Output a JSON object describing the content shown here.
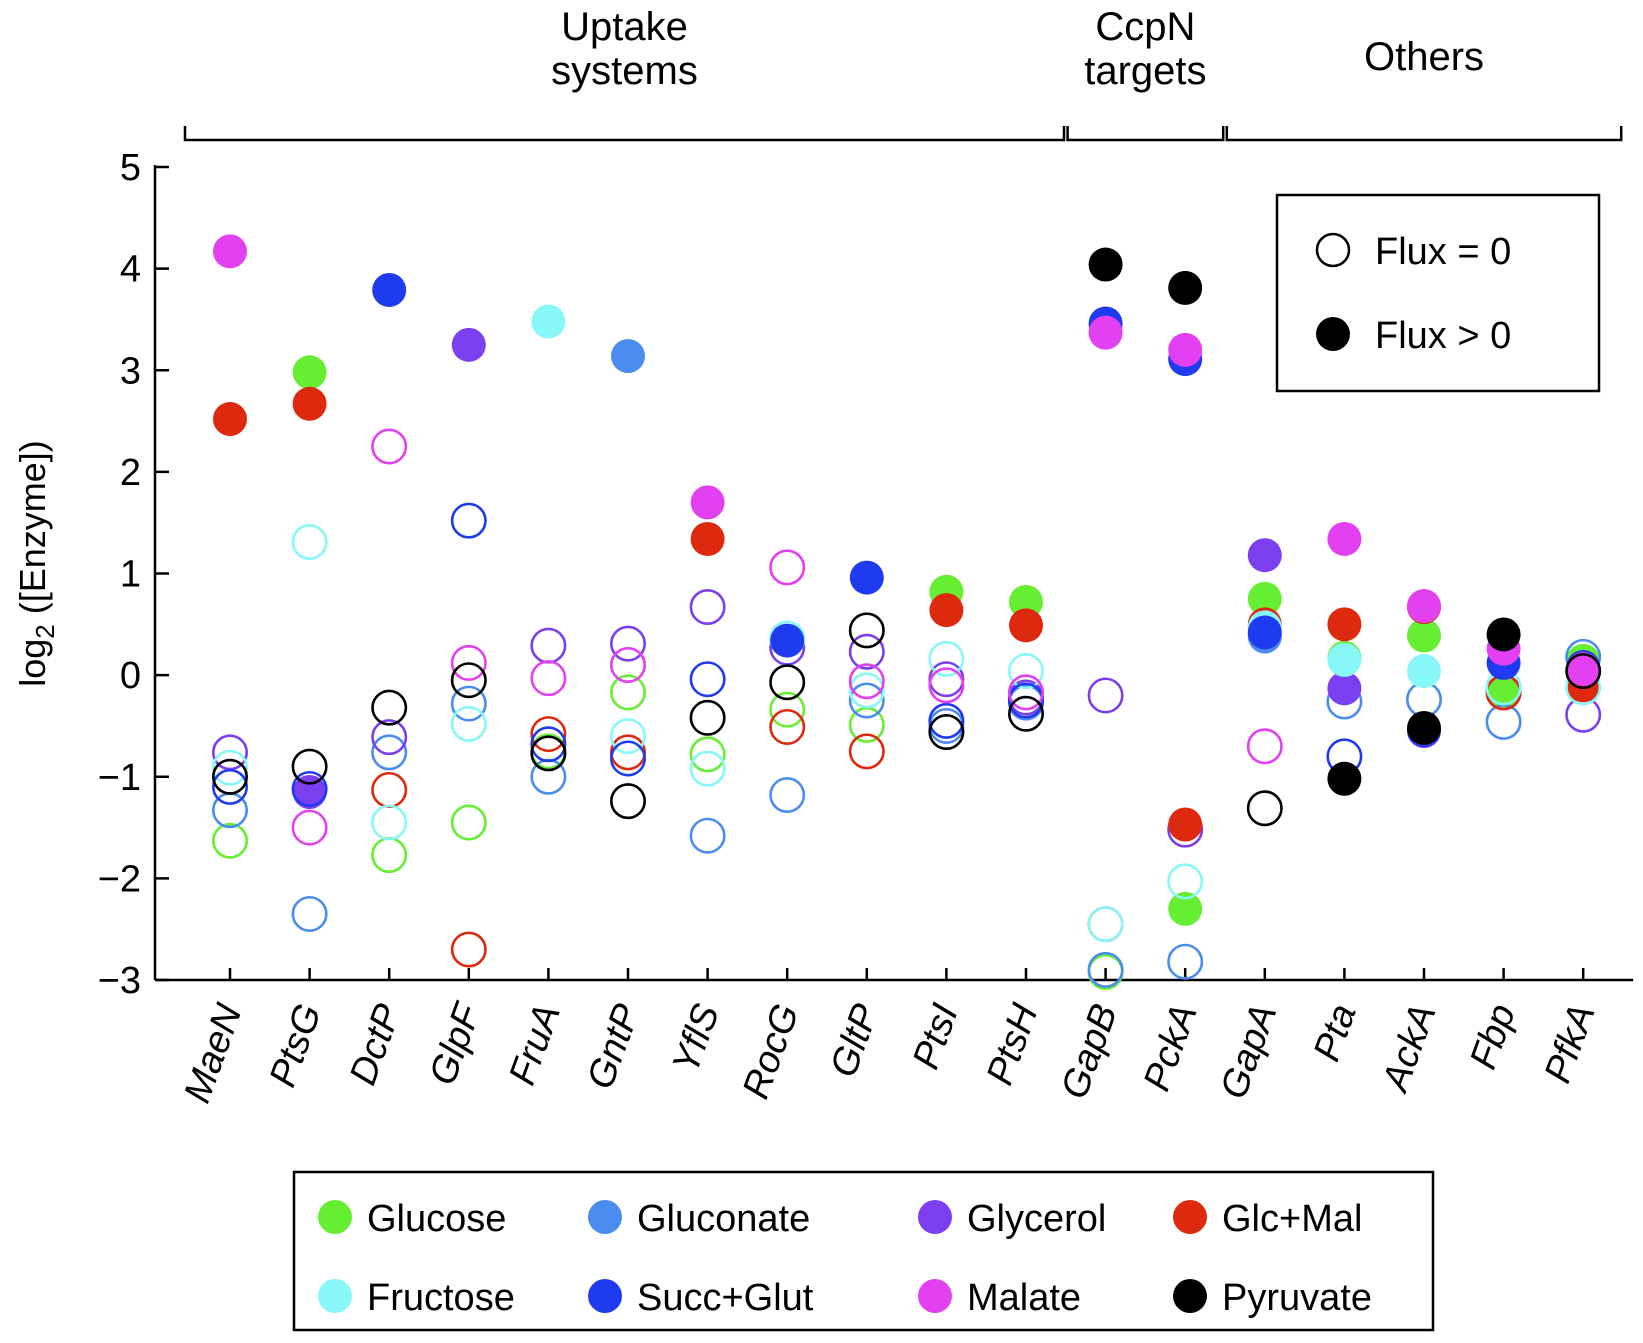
{
  "chart_data": {
    "type": "scatter",
    "ylabel": "log2 ([Enzyme])",
    "ylim": [
      -3,
      5
    ],
    "yticks": [
      5,
      4,
      3,
      2,
      1,
      0,
      -1,
      -2,
      -3
    ],
    "grid": false,
    "categories": [
      "MaeN",
      "PtsG",
      "DctP",
      "GlpF",
      "FruA",
      "GntP",
      "YflS",
      "RocG",
      "GltP",
      "PtsI",
      "PtsH",
      "GapB",
      "PckA",
      "GapA",
      "Pta",
      "AckA",
      "Fbp",
      "PfkA"
    ],
    "groups": [
      {
        "label_lines": [
          "Uptake",
          "systems"
        ],
        "from": "MaeN",
        "to": "PtsH"
      },
      {
        "label_lines": [
          "CcpN",
          "targets"
        ],
        "from": "GapB",
        "to": "PckA"
      },
      {
        "label_lines": [
          "Others"
        ],
        "from": "GapA",
        "to": "PfkA"
      }
    ],
    "flux_legend": {
      "position": "top-right",
      "open_label": "Flux = 0",
      "filled_label": "Flux > 0"
    },
    "series_legend": {
      "position": "bottom"
    },
    "series": [
      {
        "name": "Glucose",
        "color": "#66ee33",
        "points": [
          {
            "x": "MaeN",
            "y": -1.63,
            "flux": false
          },
          {
            "x": "PtsG",
            "y": 2.98,
            "flux": true
          },
          {
            "x": "DctP",
            "y": -1.77,
            "flux": false
          },
          {
            "x": "GlpF",
            "y": -1.45,
            "flux": false
          },
          {
            "x": "FruA",
            "y": -0.75,
            "flux": false
          },
          {
            "x": "GntP",
            "y": -0.17,
            "flux": false
          },
          {
            "x": "YflS",
            "y": -0.78,
            "flux": false
          },
          {
            "x": "RocG",
            "y": -0.34,
            "flux": false
          },
          {
            "x": "GltP",
            "y": -0.49,
            "flux": false
          },
          {
            "x": "PtsI",
            "y": 0.82,
            "flux": true
          },
          {
            "x": "PtsH",
            "y": 0.72,
            "flux": true
          },
          {
            "x": "GapB",
            "y": -2.92,
            "flux": false
          },
          {
            "x": "PckA",
            "y": -2.3,
            "flux": true
          },
          {
            "x": "GapA",
            "y": 0.75,
            "flux": true
          },
          {
            "x": "Pta",
            "y": 0.17,
            "flux": true
          },
          {
            "x": "AckA",
            "y": 0.39,
            "flux": true
          },
          {
            "x": "Fbp",
            "y": -0.17,
            "flux": true
          },
          {
            "x": "PfkA",
            "y": 0.14,
            "flux": true
          }
        ]
      },
      {
        "name": "Gluconate",
        "color": "#4a8cf0",
        "points": [
          {
            "x": "MaeN",
            "y": -1.33,
            "flux": false
          },
          {
            "x": "PtsG",
            "y": -2.35,
            "flux": false
          },
          {
            "x": "DctP",
            "y": -0.76,
            "flux": false
          },
          {
            "x": "GlpF",
            "y": -0.28,
            "flux": false
          },
          {
            "x": "FruA",
            "y": -1.0,
            "flux": false
          },
          {
            "x": "GntP",
            "y": 3.14,
            "flux": true
          },
          {
            "x": "YflS",
            "y": -1.58,
            "flux": false
          },
          {
            "x": "RocG",
            "y": -1.18,
            "flux": false
          },
          {
            "x": "GltP",
            "y": -0.25,
            "flux": false
          },
          {
            "x": "PtsI",
            "y": -0.5,
            "flux": false
          },
          {
            "x": "PtsH",
            "y": -0.27,
            "flux": false
          },
          {
            "x": "GapB",
            "y": -2.9,
            "flux": false
          },
          {
            "x": "PckA",
            "y": -2.82,
            "flux": false
          },
          {
            "x": "GapA",
            "y": 0.38,
            "flux": true
          },
          {
            "x": "Pta",
            "y": -0.26,
            "flux": false
          },
          {
            "x": "AckA",
            "y": -0.24,
            "flux": false
          },
          {
            "x": "Fbp",
            "y": -0.46,
            "flux": false
          },
          {
            "x": "PfkA",
            "y": 0.18,
            "flux": false
          }
        ]
      },
      {
        "name": "Glycerol",
        "color": "#7b3ff0",
        "points": [
          {
            "x": "MaeN",
            "y": -0.76,
            "flux": false
          },
          {
            "x": "PtsG",
            "y": -1.15,
            "flux": true
          },
          {
            "x": "DctP",
            "y": -0.61,
            "flux": false
          },
          {
            "x": "GlpF",
            "y": 3.25,
            "flux": true
          },
          {
            "x": "FruA",
            "y": 0.29,
            "flux": false
          },
          {
            "x": "GntP",
            "y": 0.31,
            "flux": false
          },
          {
            "x": "YflS",
            "y": 0.67,
            "flux": false
          },
          {
            "x": "RocG",
            "y": 0.27,
            "flux": false
          },
          {
            "x": "GltP",
            "y": 0.23,
            "flux": false
          },
          {
            "x": "PtsI",
            "y": -0.04,
            "flux": false
          },
          {
            "x": "PtsH",
            "y": -0.22,
            "flux": false
          },
          {
            "x": "GapB",
            "y": -0.2,
            "flux": false
          },
          {
            "x": "PckA",
            "y": -1.52,
            "flux": false
          },
          {
            "x": "GapA",
            "y": 1.18,
            "flux": true
          },
          {
            "x": "Pta",
            "y": -0.13,
            "flux": true
          },
          {
            "x": "AckA",
            "y": -0.55,
            "flux": true
          },
          {
            "x": "Fbp",
            "y": -0.17,
            "flux": false
          },
          {
            "x": "PfkA",
            "y": -0.39,
            "flux": false
          }
        ]
      },
      {
        "name": "Glc+Mal",
        "color": "#dd2a0e",
        "points": [
          {
            "x": "MaeN",
            "y": 2.52,
            "flux": true
          },
          {
            "x": "PtsG",
            "y": 2.67,
            "flux": true
          },
          {
            "x": "DctP",
            "y": -1.13,
            "flux": false
          },
          {
            "x": "GlpF",
            "y": -2.7,
            "flux": false
          },
          {
            "x": "FruA",
            "y": -0.58,
            "flux": false
          },
          {
            "x": "GntP",
            "y": -0.76,
            "flux": false
          },
          {
            "x": "YflS",
            "y": 1.34,
            "flux": true
          },
          {
            "x": "RocG",
            "y": -0.51,
            "flux": false
          },
          {
            "x": "GltP",
            "y": -0.75,
            "flux": false
          },
          {
            "x": "PtsI",
            "y": 0.64,
            "flux": true
          },
          {
            "x": "PtsH",
            "y": 0.49,
            "flux": true
          },
          {
            "x": "GapB",
            "y": -2.45,
            "flux": false
          },
          {
            "x": "PckA",
            "y": -1.47,
            "flux": true
          },
          {
            "x": "GapA",
            "y": 0.5,
            "flux": true
          },
          {
            "x": "Pta",
            "y": 0.5,
            "flux": true
          },
          {
            "x": "AckA",
            "y": 0.67,
            "flux": true
          },
          {
            "x": "Fbp",
            "y": -0.17,
            "flux": false
          },
          {
            "x": "PfkA",
            "y": -0.1,
            "flux": true
          }
        ]
      },
      {
        "name": "Fructose",
        "color": "#88f7f7",
        "points": [
          {
            "x": "MaeN",
            "y": -0.91,
            "flux": false
          },
          {
            "x": "PtsG",
            "y": 1.31,
            "flux": false
          },
          {
            "x": "DctP",
            "y": -1.45,
            "flux": false
          },
          {
            "x": "GlpF",
            "y": -0.48,
            "flux": false
          },
          {
            "x": "FruA",
            "y": 3.48,
            "flux": true
          },
          {
            "x": "GntP",
            "y": -0.6,
            "flux": false
          },
          {
            "x": "YflS",
            "y": -0.92,
            "flux": false
          },
          {
            "x": "RocG",
            "y": 0.36,
            "flux": false
          },
          {
            "x": "GltP",
            "y": -0.15,
            "flux": false
          },
          {
            "x": "PtsI",
            "y": 0.16,
            "flux": false
          },
          {
            "x": "PtsH",
            "y": 0.04,
            "flux": false
          },
          {
            "x": "GapB",
            "y": -2.45,
            "flux": false
          },
          {
            "x": "PckA",
            "y": -2.03,
            "flux": false
          },
          {
            "x": "GapA",
            "y": 0.47,
            "flux": true
          },
          {
            "x": "Pta",
            "y": 0.15,
            "flux": true
          },
          {
            "x": "AckA",
            "y": 0.04,
            "flux": true
          },
          {
            "x": "Fbp",
            "y": -0.12,
            "flux": false
          },
          {
            "x": "PfkA",
            "y": -0.12,
            "flux": false
          }
        ]
      },
      {
        "name": "Succ+Glut",
        "color": "#1f3bef",
        "points": [
          {
            "x": "MaeN",
            "y": -1.1,
            "flux": false
          },
          {
            "x": "PtsG",
            "y": -1.12,
            "flux": false
          },
          {
            "x": "DctP",
            "y": 3.79,
            "flux": true
          },
          {
            "x": "GlpF",
            "y": 1.52,
            "flux": false
          },
          {
            "x": "FruA",
            "y": -0.68,
            "flux": false
          },
          {
            "x": "GntP",
            "y": -0.82,
            "flux": false
          },
          {
            "x": "YflS",
            "y": -0.04,
            "flux": false
          },
          {
            "x": "RocG",
            "y": 0.34,
            "flux": true
          },
          {
            "x": "GltP",
            "y": 0.96,
            "flux": true
          },
          {
            "x": "PtsI",
            "y": -0.45,
            "flux": false
          },
          {
            "x": "PtsH",
            "y": -0.25,
            "flux": false
          },
          {
            "x": "GapB",
            "y": 3.46,
            "flux": true
          },
          {
            "x": "PckA",
            "y": 3.11,
            "flux": true
          },
          {
            "x": "GapA",
            "y": 0.42,
            "flux": true
          },
          {
            "x": "Pta",
            "y": -0.8,
            "flux": false
          },
          {
            "x": "AckA",
            "y": -0.54,
            "flux": true
          },
          {
            "x": "Fbp",
            "y": 0.12,
            "flux": true
          },
          {
            "x": "PfkA",
            "y": 0.08,
            "flux": true
          }
        ]
      },
      {
        "name": "Malate",
        "color": "#e240f0",
        "points": [
          {
            "x": "MaeN",
            "y": 4.17,
            "flux": true
          },
          {
            "x": "PtsG",
            "y": -1.5,
            "flux": false
          },
          {
            "x": "DctP",
            "y": 2.25,
            "flux": false
          },
          {
            "x": "GlpF",
            "y": 0.12,
            "flux": false
          },
          {
            "x": "FruA",
            "y": -0.03,
            "flux": false
          },
          {
            "x": "GntP",
            "y": 0.1,
            "flux": false
          },
          {
            "x": "YflS",
            "y": 1.7,
            "flux": true
          },
          {
            "x": "RocG",
            "y": 1.06,
            "flux": false
          },
          {
            "x": "GltP",
            "y": -0.06,
            "flux": false
          },
          {
            "x": "PtsI",
            "y": -0.1,
            "flux": false
          },
          {
            "x": "PtsH",
            "y": -0.17,
            "flux": false
          },
          {
            "x": "GapB",
            "y": 3.37,
            "flux": true
          },
          {
            "x": "PckA",
            "y": 3.2,
            "flux": true
          },
          {
            "x": "GapA",
            "y": -0.7,
            "flux": false
          },
          {
            "x": "Pta",
            "y": 1.34,
            "flux": true
          },
          {
            "x": "AckA",
            "y": 0.68,
            "flux": true
          },
          {
            "x": "Fbp",
            "y": 0.26,
            "flux": true
          },
          {
            "x": "PfkA",
            "y": 0.06,
            "flux": true
          }
        ]
      },
      {
        "name": "Pyruvate",
        "color": "#000000",
        "points": [
          {
            "x": "MaeN",
            "y": -1.0,
            "flux": false
          },
          {
            "x": "PtsG",
            "y": -0.9,
            "flux": false
          },
          {
            "x": "DctP",
            "y": -0.32,
            "flux": false
          },
          {
            "x": "GlpF",
            "y": -0.05,
            "flux": false
          },
          {
            "x": "FruA",
            "y": -0.77,
            "flux": false
          },
          {
            "x": "GntP",
            "y": -1.24,
            "flux": false
          },
          {
            "x": "YflS",
            "y": -0.42,
            "flux": false
          },
          {
            "x": "RocG",
            "y": -0.07,
            "flux": false
          },
          {
            "x": "GltP",
            "y": 0.44,
            "flux": false
          },
          {
            "x": "PtsI",
            "y": -0.56,
            "flux": false
          },
          {
            "x": "PtsH",
            "y": -0.38,
            "flux": false
          },
          {
            "x": "GapB",
            "y": 4.04,
            "flux": true
          },
          {
            "x": "PckA",
            "y": 3.81,
            "flux": true
          },
          {
            "x": "GapA",
            "y": -1.31,
            "flux": false
          },
          {
            "x": "Pta",
            "y": -1.02,
            "flux": true
          },
          {
            "x": "AckA",
            "y": -0.52,
            "flux": true
          },
          {
            "x": "Fbp",
            "y": 0.4,
            "flux": true
          },
          {
            "x": "PfkA",
            "y": 0.04,
            "flux": false
          }
        ]
      }
    ]
  }
}
